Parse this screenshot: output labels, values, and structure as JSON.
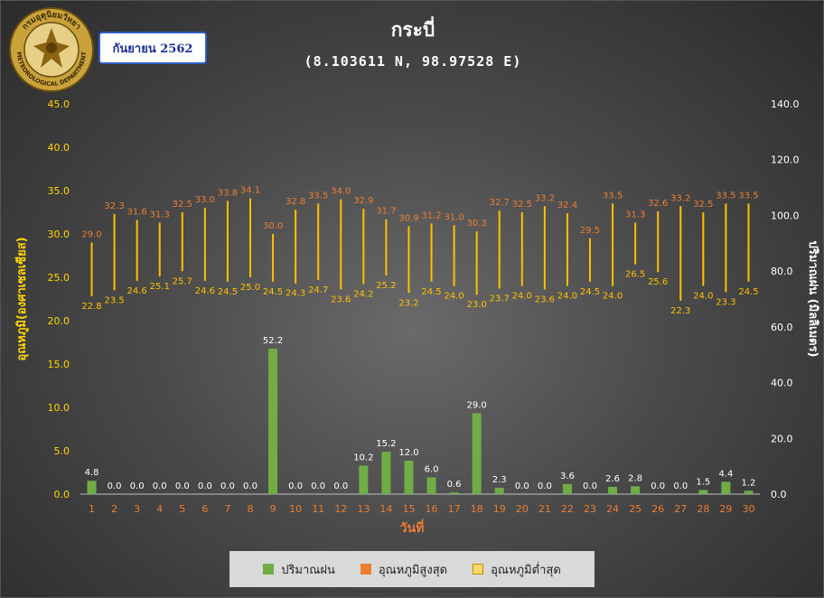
{
  "title": "กระบี่",
  "subtitle": "(8.103611 N, 98.97528 E)",
  "month_label": "กันยายน 2562",
  "logo": {
    "top_text": "กรมอุตุนิยมวิทยา",
    "bottom_text": "METEOROLOGICAL DEPARTMENT"
  },
  "colors": {
    "rain": "#70ad47",
    "max": "#ed7d31",
    "min": "#ffc000",
    "left_axis": "#ffd700",
    "right_axis": "#ffffff",
    "x_tick": "#ed7d31"
  },
  "chart_data": {
    "type": "bar",
    "categories": [
      "1",
      "2",
      "3",
      "4",
      "5",
      "6",
      "7",
      "8",
      "9",
      "10",
      "11",
      "12",
      "13",
      "14",
      "15",
      "16",
      "17",
      "18",
      "19",
      "20",
      "21",
      "22",
      "23",
      "24",
      "25",
      "26",
      "27",
      "28",
      "29",
      "30"
    ],
    "xlabel": "วันที่",
    "ylabel": "อุณหภูมิ(องศาเซลเซียส)",
    "y2label": "ปริมาณฝน (มิลลิเมตร)",
    "ylim": [
      0,
      45
    ],
    "y2lim": [
      0,
      140
    ],
    "yticks": [
      "0.0",
      "5.0",
      "10.0",
      "15.0",
      "20.0",
      "25.0",
      "30.0",
      "35.0",
      "40.0",
      "45.0"
    ],
    "y2ticks": [
      "0.0",
      "20.0",
      "40.0",
      "60.0",
      "80.0",
      "100.0",
      "120.0",
      "140.0"
    ],
    "legend_position": "bottom",
    "series": [
      {
        "name": "ปริมาณฝน",
        "kind": "bar",
        "axis": "right",
        "values": [
          4.8,
          0.0,
          0.0,
          0.0,
          0.0,
          0.0,
          0.0,
          0.0,
          52.2,
          0.0,
          0.0,
          0.0,
          10.2,
          15.2,
          12.0,
          6.0,
          0.6,
          29.0,
          2.3,
          0.0,
          0.0,
          3.6,
          0.0,
          2.6,
          2.8,
          0.0,
          0.0,
          1.5,
          4.4,
          1.2
        ]
      },
      {
        "name": "อุณหภูมิสูงสุด",
        "kind": "range-top",
        "axis": "left",
        "values": [
          29.0,
          32.3,
          31.6,
          31.3,
          32.5,
          33.0,
          33.8,
          34.1,
          30.0,
          32.8,
          33.5,
          34.0,
          32.9,
          31.7,
          30.9,
          31.2,
          31.0,
          30.3,
          32.7,
          32.5,
          33.2,
          32.4,
          29.5,
          33.5,
          31.3,
          32.6,
          33.2,
          32.5,
          33.5,
          33.5
        ]
      },
      {
        "name": "อุณหภูมิต่ำสุด",
        "kind": "range-bottom",
        "axis": "left",
        "values": [
          22.8,
          23.5,
          24.6,
          25.1,
          25.7,
          24.6,
          24.5,
          25.0,
          24.5,
          24.3,
          24.7,
          23.6,
          24.2,
          25.2,
          23.2,
          24.5,
          24.0,
          23.0,
          23.7,
          24.0,
          23.6,
          24.0,
          24.5,
          24.0,
          26.5,
          25.6,
          22.3,
          24.0,
          23.3,
          24.5
        ]
      }
    ]
  }
}
